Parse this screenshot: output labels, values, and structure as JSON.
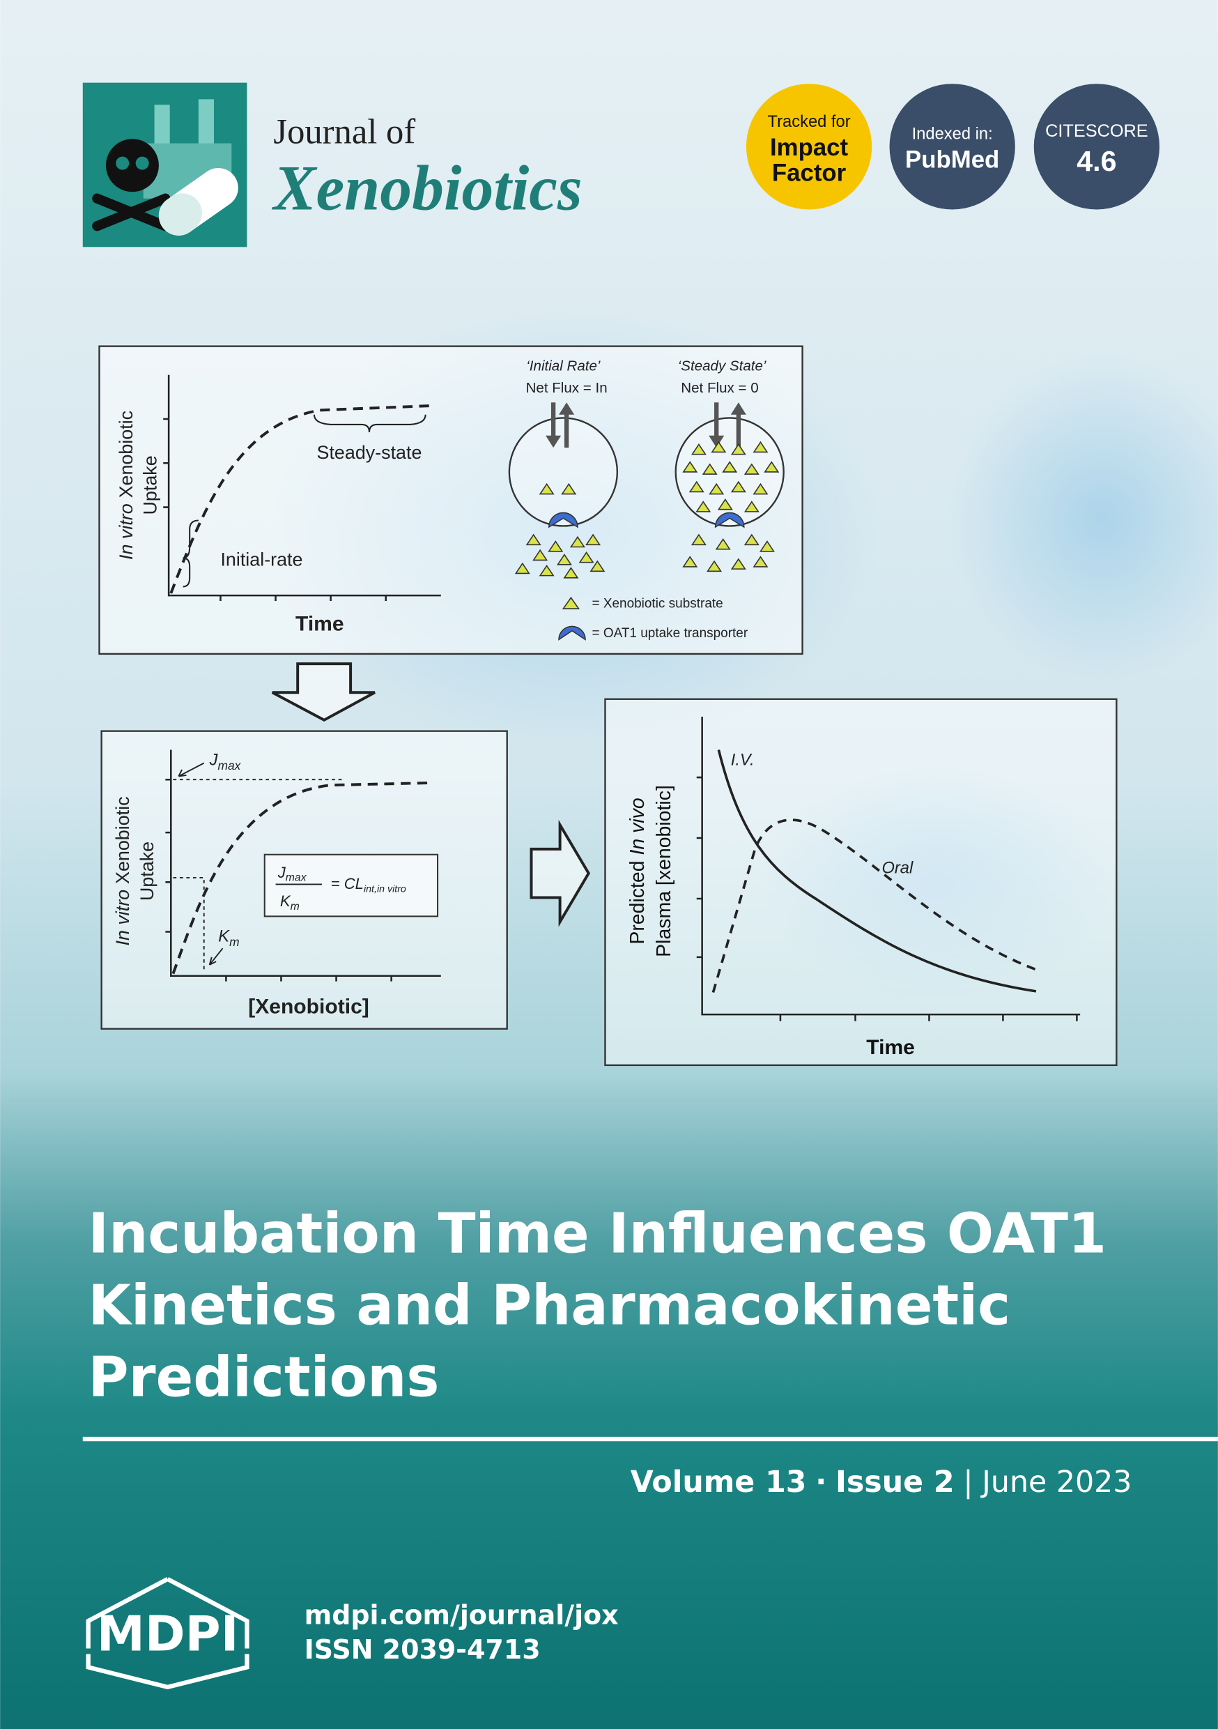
{
  "header": {
    "journal_prefix": "Journal of",
    "journal_name": "Xenobiotics"
  },
  "badges": [
    {
      "lines": [
        "Tracked for",
        "Impact",
        "Factor"
      ]
    },
    {
      "lines": [
        "Indexed in:",
        "PubMed"
      ]
    },
    {
      "lines": [
        "CITESCORE",
        "4.6"
      ]
    }
  ],
  "figure": {
    "uptake_time": {
      "y_label_italic": "In vitro",
      "y_label_rest": "Xenobiotic",
      "y_label_line2": "Uptake",
      "x_label": "Time",
      "steady_label": "Steady-state",
      "initial_label": "Initial-rate",
      "initial_rate_title": "‘Initial Rate’",
      "initial_rate_flux": "Net Flux = In",
      "steady_state_title": "‘Steady State’",
      "steady_state_flux": "Net Flux = 0",
      "legend_substrate": "= Xenobiotic substrate",
      "legend_transporter": "= OAT1 uptake transporter"
    },
    "uptake_concentration": {
      "y_label_italic": "In vitro",
      "y_label_rest": "Xenobiotic",
      "y_label_line2": "Uptake",
      "x_label": "[Xenobiotic]",
      "jmax_symbol": "J",
      "jmax_sub": "max",
      "km_symbol": "K",
      "km_sub": "m",
      "equation_num": "J",
      "equation_num_sub": "max",
      "equation_den": "K",
      "equation_den_sub": "m",
      "equation_rhs": "= CL",
      "equation_rhs_sub": "int,in vitro"
    },
    "plasma_time": {
      "y_label_line1": "Predicted",
      "y_label_italic": "In vivo",
      "y_label_line2": "Plasma [xenobiotic]",
      "x_label": "Time",
      "iv_label": "I.V.",
      "oral_label": "Oral"
    }
  },
  "article_title": [
    "Incubation Time Influences OAT1",
    "Kinetics and Pharmacokinetic",
    "Predictions"
  ],
  "issue": {
    "volume": "Volume 13",
    "dot": "·",
    "issue": "Issue 2",
    "divider": "|",
    "date": "June 2023"
  },
  "footer": {
    "publisher": "MDPI",
    "url": "mdpi.com/journal/jox",
    "issn": "ISSN 2039-4713"
  }
}
